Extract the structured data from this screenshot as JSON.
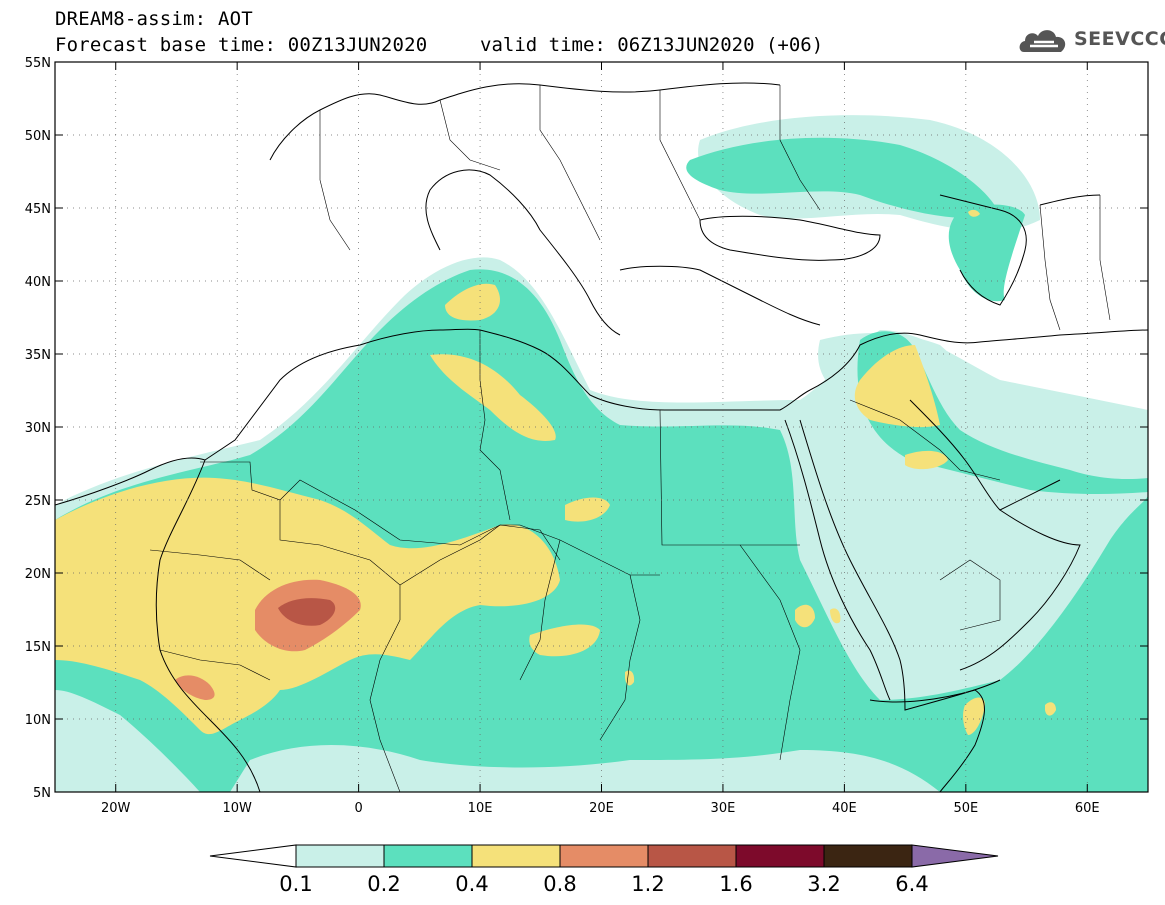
{
  "header": {
    "line1": "DREAM8-assim: AOT",
    "line2_base": "Forecast base time: 00Z13JUN2020",
    "line2_valid": "valid time: 06Z13JUN2020 (+06)"
  },
  "logo": {
    "text": "SEEVCCC",
    "icon": "cloud-icon"
  },
  "map": {
    "lon_range": [
      -25,
      65
    ],
    "lat_range": [
      5,
      55
    ],
    "lat_ticks": [
      {
        "value": 55,
        "label": "55N"
      },
      {
        "value": 50,
        "label": "50N"
      },
      {
        "value": 45,
        "label": "45N"
      },
      {
        "value": 40,
        "label": "40N"
      },
      {
        "value": 35,
        "label": "35N"
      },
      {
        "value": 30,
        "label": "30N"
      },
      {
        "value": 25,
        "label": "25N"
      },
      {
        "value": 20,
        "label": "20N"
      },
      {
        "value": 15,
        "label": "15N"
      },
      {
        "value": 10,
        "label": "10N"
      },
      {
        "value": 5,
        "label": "5N"
      }
    ],
    "lon_ticks": [
      {
        "value": -20,
        "label": "20W"
      },
      {
        "value": -10,
        "label": "10W"
      },
      {
        "value": 0,
        "label": "0"
      },
      {
        "value": 10,
        "label": "10E"
      },
      {
        "value": 20,
        "label": "20E"
      },
      {
        "value": 30,
        "label": "30E"
      },
      {
        "value": 40,
        "label": "40E"
      },
      {
        "value": 50,
        "label": "50E"
      },
      {
        "value": 60,
        "label": "60E"
      }
    ],
    "gridlines": "dotted"
  },
  "colorbar": {
    "labels": [
      "0.1",
      "0.2",
      "0.4",
      "0.8",
      "1.2",
      "1.6",
      "3.2",
      "6.4"
    ],
    "colors": [
      "#ffffff",
      "#c9f0e8",
      "#5ce0be",
      "#f5e17a",
      "#e58c66",
      "#b85646",
      "#7d0a2b",
      "#3b2512",
      "#8a6aa8"
    ]
  }
}
